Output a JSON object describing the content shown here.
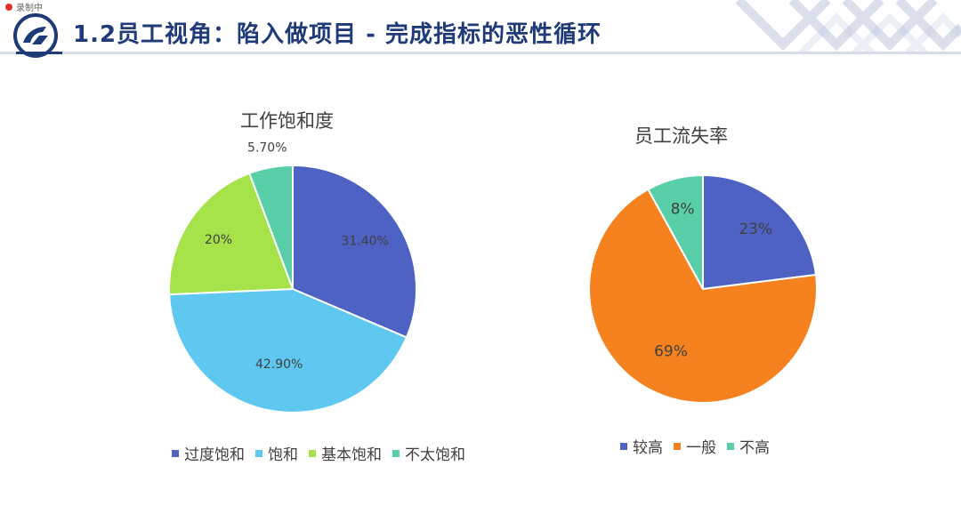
{
  "header": {
    "recording_text": "录制中",
    "title": "1.2员工视角：陷入做项目 - 完成指标的恶性循环"
  },
  "chart_data": [
    {
      "type": "pie",
      "title": "工作饱和度",
      "categories": [
        "过度饱和",
        "饱和",
        "基本饱和",
        "不太饱和"
      ],
      "values": [
        31.4,
        42.9,
        20,
        5.7
      ],
      "labels": [
        "31.40%",
        "42.90%",
        "20%",
        "5.70%"
      ],
      "colors": [
        "#4e62c4",
        "#5fc8f0",
        "#a6e34a",
        "#58cfa8"
      ],
      "legend": "bottom"
    },
    {
      "type": "pie",
      "title": "员工流失率",
      "categories": [
        "较高",
        "一般",
        "不高"
      ],
      "values": [
        23,
        69,
        8
      ],
      "labels": [
        "23%",
        "69%",
        "8%"
      ],
      "colors": [
        "#4e62c4",
        "#f5821f",
        "#58cfa8"
      ],
      "legend": "bottom"
    }
  ]
}
